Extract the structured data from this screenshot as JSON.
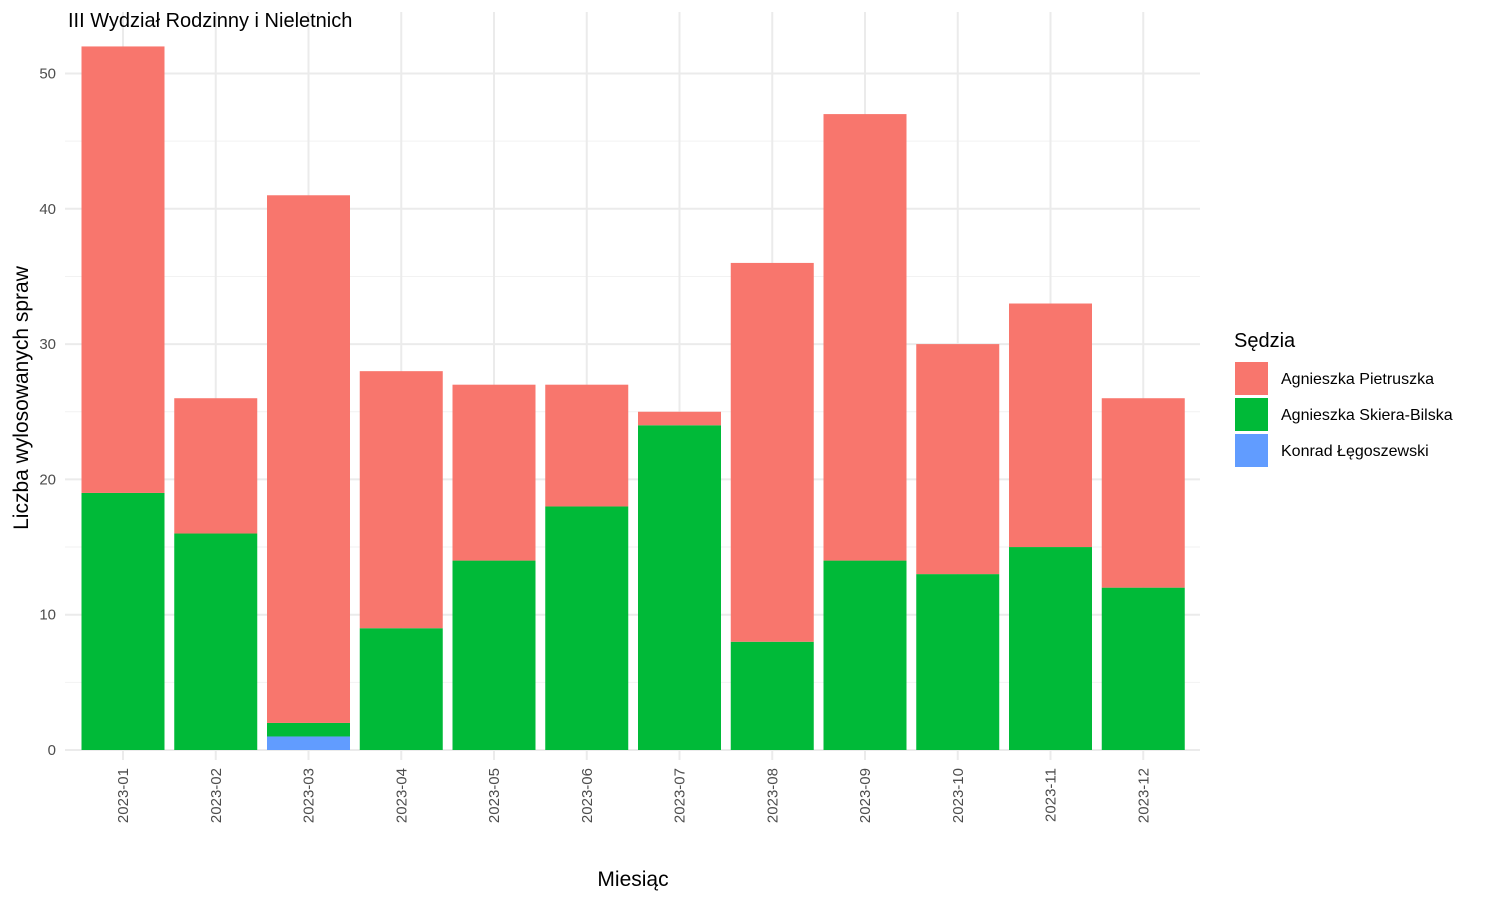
{
  "chart_data": {
    "type": "bar",
    "stacked": true,
    "title": "III Wydział Rodzinny i Nieletnich",
    "xlabel": "Miesiąc",
    "ylabel": "Liczba wylosowanych spraw",
    "ylim": [
      0,
      52
    ],
    "yticks": [
      0,
      10,
      20,
      30,
      40,
      50
    ],
    "grid": true,
    "legend_title": "Sędzia",
    "legend_position": "right",
    "categories": [
      "2023-01",
      "2023-02",
      "2023-03",
      "2023-04",
      "2023-05",
      "2023-06",
      "2023-07",
      "2023-08",
      "2023-09",
      "2023-10",
      "2023-11",
      "2023-12"
    ],
    "series": [
      {
        "name": "Agnieszka Pietruszka",
        "color": "#F8766D",
        "values": [
          33,
          10,
          39,
          19,
          13,
          9,
          1,
          28,
          33,
          17,
          18,
          14
        ]
      },
      {
        "name": "Agnieszka Skiera-Bilska",
        "color": "#00BA38",
        "values": [
          19,
          16,
          1,
          9,
          14,
          18,
          24,
          8,
          14,
          13,
          15,
          12
        ]
      },
      {
        "name": "Konrad Łęgoszewski",
        "color": "#619CFF",
        "values": [
          0,
          0,
          1,
          0,
          0,
          0,
          0,
          0,
          0,
          0,
          0,
          0
        ]
      }
    ]
  }
}
